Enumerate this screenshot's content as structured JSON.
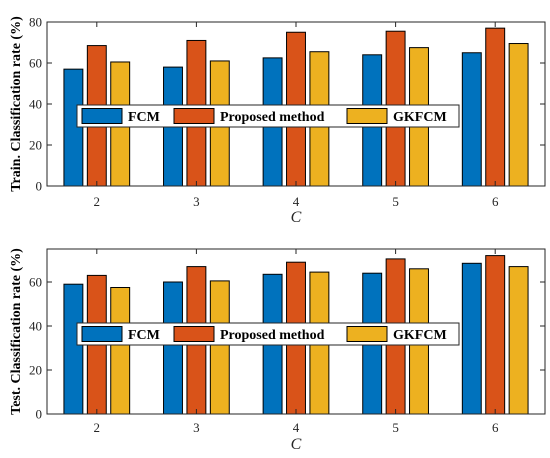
{
  "colors": {
    "FCM": "#0072BD",
    "Proposed method": "#D95319",
    "GKFCM": "#EDB120"
  },
  "chart_data": [
    {
      "type": "bar",
      "xlabel": "C",
      "ylabel": "Train. Classification rate (%)",
      "ylim": [
        0,
        80
      ],
      "yticks": [
        0,
        20,
        40,
        60,
        80
      ],
      "categories": [
        "2",
        "3",
        "4",
        "5",
        "6"
      ],
      "series": [
        {
          "name": "FCM",
          "values": [
            57,
            58,
            62.5,
            64,
            65
          ]
        },
        {
          "name": "Proposed method",
          "values": [
            68.5,
            71,
            75,
            75.5,
            77
          ]
        },
        {
          "name": "GKFCM",
          "values": [
            60.5,
            61,
            65.5,
            67.5,
            69.5
          ]
        }
      ],
      "legend": "inside-middle",
      "grid": false
    },
    {
      "type": "bar",
      "xlabel": "C",
      "ylabel": "Test. Classification rate (%)",
      "ylim": [
        0,
        75
      ],
      "yticks": [
        0,
        20,
        40,
        60
      ],
      "categories": [
        "2",
        "3",
        "4",
        "5",
        "6"
      ],
      "series": [
        {
          "name": "FCM",
          "values": [
            59,
            60,
            63.5,
            64,
            68.5
          ]
        },
        {
          "name": "Proposed method",
          "values": [
            63,
            67,
            69,
            70.5,
            72
          ]
        },
        {
          "name": "GKFCM",
          "values": [
            57.5,
            60.5,
            64.5,
            66,
            67
          ]
        }
      ],
      "legend": "inside-middle",
      "grid": false
    }
  ]
}
